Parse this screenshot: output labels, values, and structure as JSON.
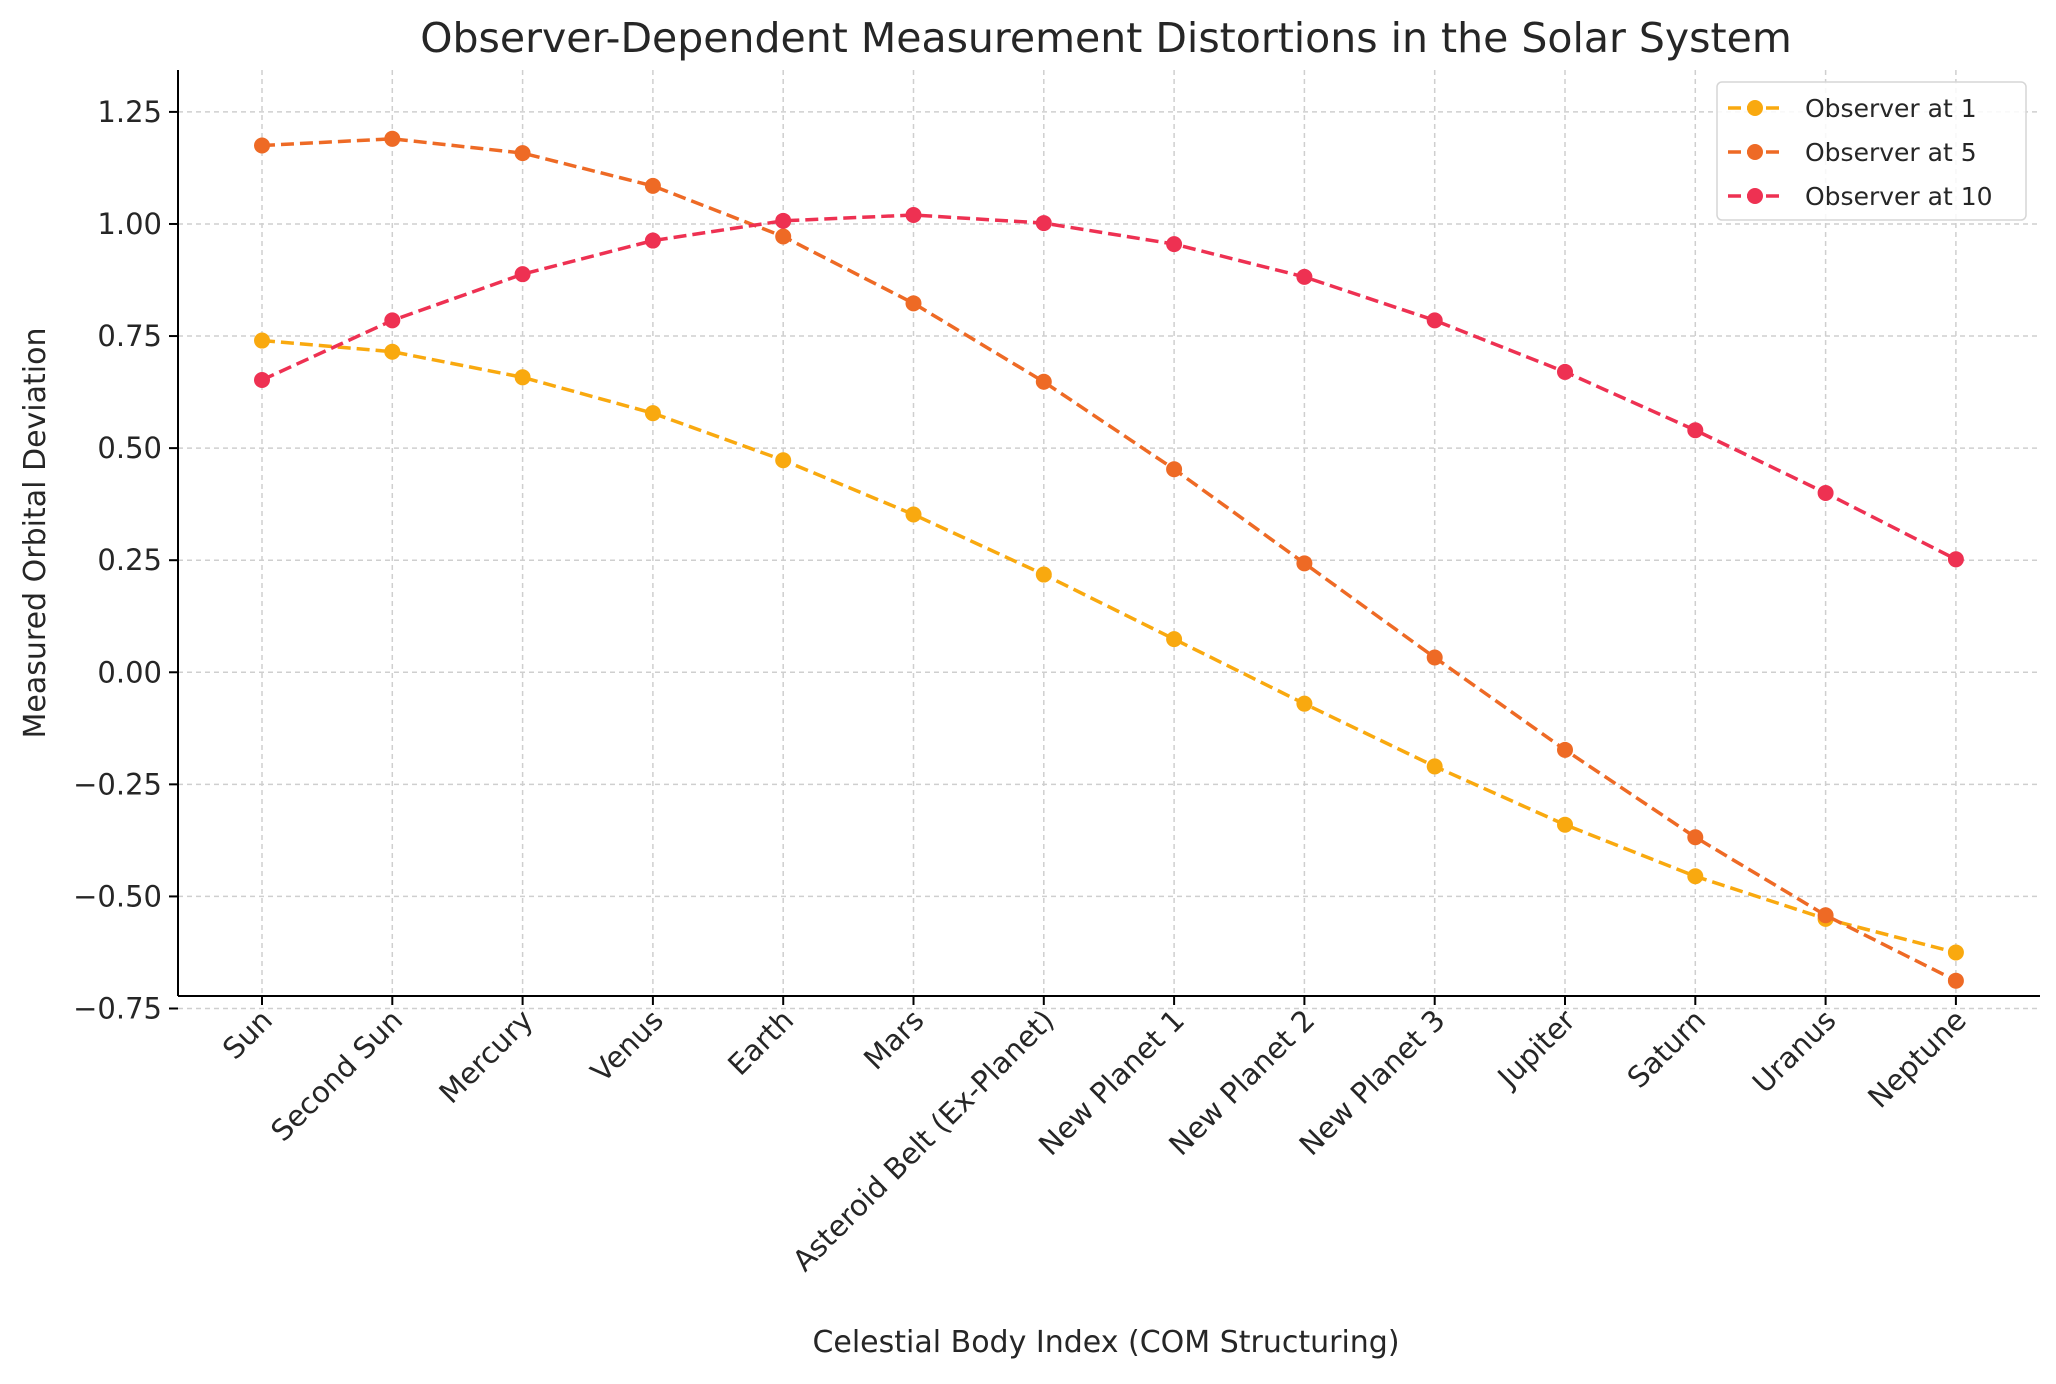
{
  "chart_data": {
    "type": "line",
    "title": "Observer-Dependent Measurement Distortions in the Solar System",
    "xlabel": "Celestial Body Index (COM Structuring)",
    "ylabel": "Measured Orbital Deviation",
    "categories": [
      "Sun",
      "Second Sun",
      "Mercury",
      "Venus",
      "Earth",
      "Mars",
      "Asteroid Belt (Ex-Planet)",
      "New Planet 1",
      "New Planet 2",
      "New Planet 3",
      "Jupiter",
      "Saturn",
      "Uranus",
      "Neptune"
    ],
    "ylim": [
      -0.78,
      1.29
    ],
    "yticks": [
      -0.75,
      -0.5,
      -0.25,
      0.0,
      0.25,
      0.5,
      0.75,
      1.0,
      1.25
    ],
    "ytick_labels": [
      "−0.75",
      "−0.50",
      "−0.25",
      "0.00",
      "0.25",
      "0.50",
      "0.75",
      "1.00",
      "1.25"
    ],
    "grid": true,
    "legend_position": "top-right",
    "series": [
      {
        "name": "Observer at 1",
        "color": "#F9A90F",
        "values": [
          0.74,
          0.715,
          0.658,
          0.578,
          0.473,
          0.352,
          0.218,
          0.074,
          -0.07,
          -0.21,
          -0.34,
          -0.455,
          -0.55,
          -0.625
        ]
      },
      {
        "name": "Observer at 5",
        "color": "#EE6A25",
        "values": [
          1.175,
          1.19,
          1.158,
          1.085,
          0.972,
          0.823,
          0.648,
          0.453,
          0.243,
          0.033,
          -0.173,
          -0.368,
          -0.542,
          -0.688
        ]
      },
      {
        "name": "Observer at 10",
        "color": "#EE3152",
        "values": [
          0.652,
          0.785,
          0.888,
          0.963,
          1.007,
          1.02,
          1.002,
          0.955,
          0.882,
          0.785,
          0.67,
          0.54,
          0.4,
          0.252
        ]
      }
    ]
  }
}
